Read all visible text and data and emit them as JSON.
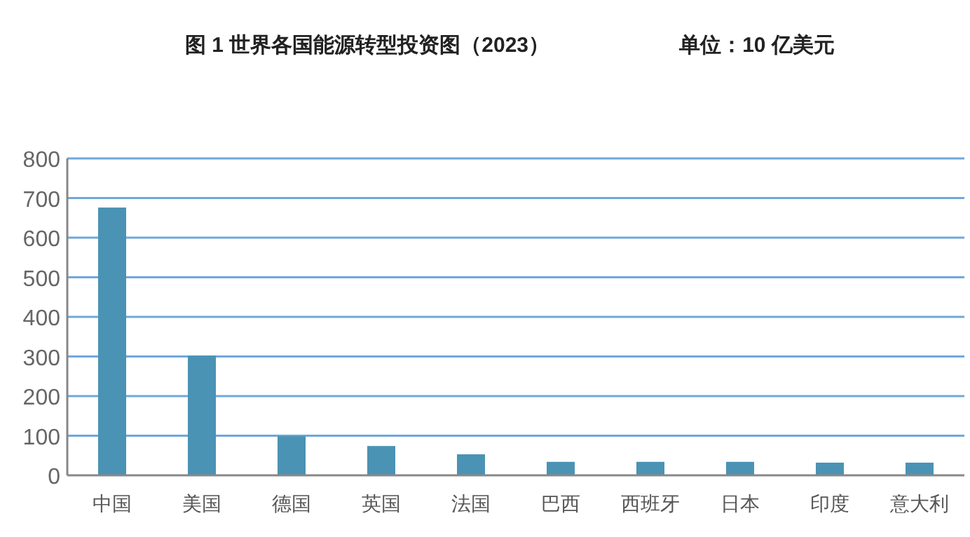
{
  "chart_data": {
    "type": "bar",
    "title": "图 1 世界各国能源转型投资图（2023）",
    "annotations": [
      "单位：10 亿美元"
    ],
    "categories": [
      "中国",
      "美国",
      "德国",
      "英国",
      "法国",
      "巴西",
      "西班牙",
      "日本",
      "印度",
      "意大利"
    ],
    "series": [
      {
        "color": "#4a93b4",
        "values": [
          676,
          302,
          99,
          74,
          53,
          34,
          34,
          34,
          32,
          32
        ]
      }
    ],
    "ylim": [
      0,
      800
    ],
    "yticks": [
      0,
      100,
      200,
      300,
      400,
      500,
      600,
      700,
      800
    ],
    "grid": "y"
  }
}
